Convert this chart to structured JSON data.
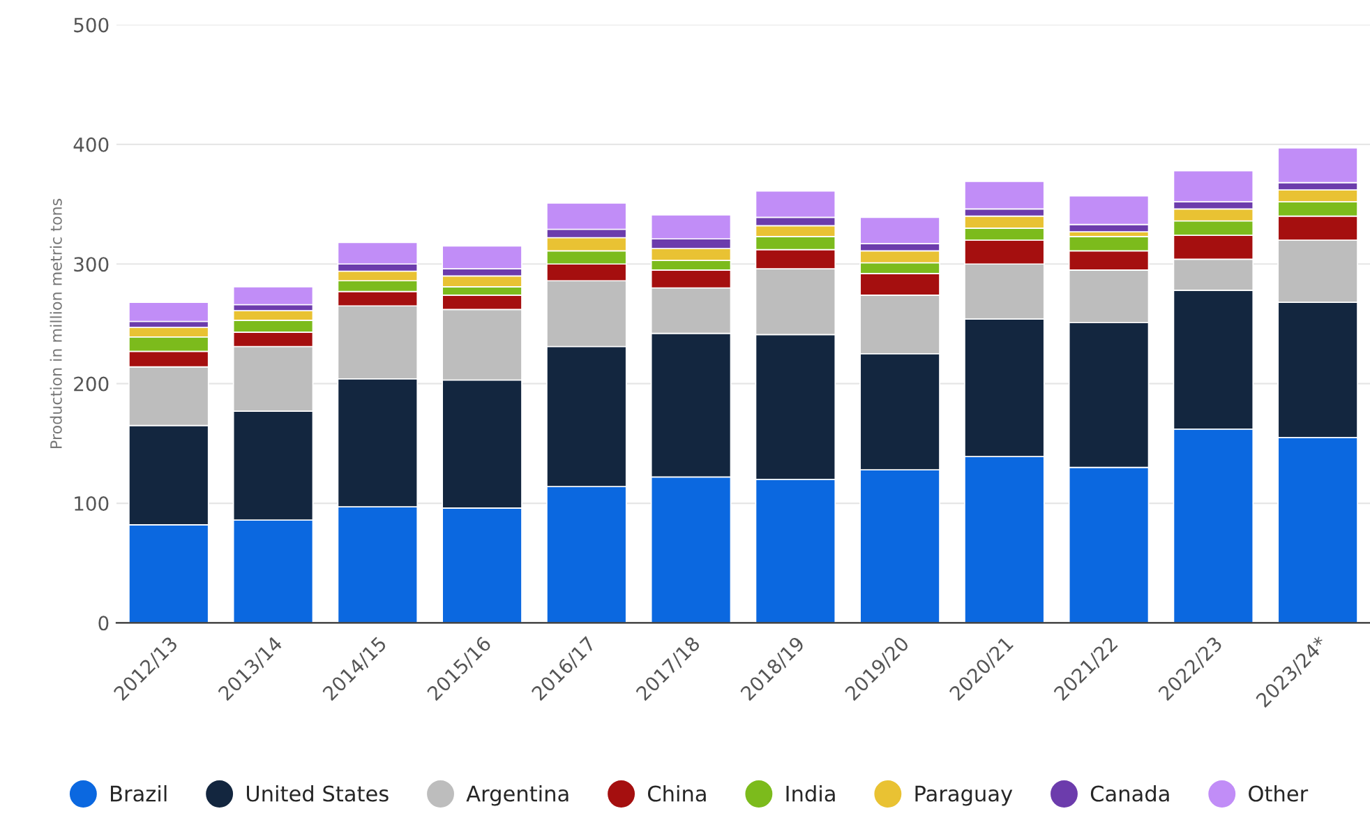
{
  "chart_data": {
    "type": "bar",
    "stacked": true,
    "ylabel": "Production in million metric tons",
    "categories": [
      "2012/13",
      "2013/14",
      "2014/15",
      "2015/16",
      "2016/17",
      "2017/18",
      "2018/19",
      "2019/20",
      "2020/21",
      "2021/22",
      "2022/23",
      "2023/24*"
    ],
    "series": [
      {
        "name": "Brazil",
        "color": "#0b68e0",
        "values": [
          82,
          86,
          97,
          96,
          114,
          122,
          120,
          128,
          139,
          130,
          162,
          155
        ]
      },
      {
        "name": "United States",
        "color": "#13263f",
        "values": [
          83,
          91,
          107,
          107,
          117,
          120,
          121,
          97,
          115,
          121,
          116,
          113
        ]
      },
      {
        "name": "Argentina",
        "color": "#bdbdbd",
        "values": [
          49,
          54,
          61,
          59,
          55,
          38,
          55,
          49,
          46,
          44,
          26,
          52
        ]
      },
      {
        "name": "China",
        "color": "#a50f0f",
        "values": [
          13,
          12,
          12,
          12,
          14,
          15,
          16,
          18,
          20,
          16,
          20,
          20
        ]
      },
      {
        "name": "India",
        "color": "#7cbb1c",
        "values": [
          12,
          10,
          9,
          7,
          11,
          8,
          11,
          9,
          10,
          12,
          12,
          12
        ]
      },
      {
        "name": "Paraguay",
        "color": "#e9c233",
        "values": [
          8,
          8,
          8,
          9,
          11,
          10,
          9,
          10,
          10,
          4,
          10,
          10
        ]
      },
      {
        "name": "Canada",
        "color": "#6c3cac",
        "values": [
          5,
          5,
          6,
          6,
          7,
          8,
          7,
          6,
          6,
          6,
          6,
          6
        ]
      },
      {
        "name": "Other",
        "color": "#c18df7",
        "values": [
          16,
          15,
          18,
          19,
          22,
          20,
          22,
          22,
          23,
          24,
          26,
          29
        ]
      }
    ],
    "ylim": [
      0,
      500
    ],
    "yticks": [
      0,
      100,
      200,
      300,
      400,
      500
    ],
    "grid": "y",
    "legend": "bottom",
    "marker": "circle"
  }
}
